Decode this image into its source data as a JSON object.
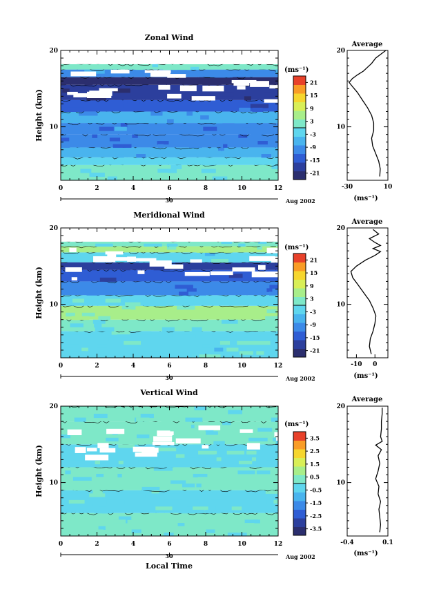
{
  "chart_data": [
    {
      "type": "heatmap",
      "title": "Zonal Wind",
      "ylabel": "Height (km)",
      "ylim": [
        3,
        20
      ],
      "yticks": [
        "10",
        "20"
      ],
      "xlim": [
        0,
        12
      ],
      "xticks": [
        "0",
        "2",
        "4",
        "6",
        "8",
        "10",
        "12"
      ],
      "date_day": "30",
      "date_label": "Aug 2002",
      "unit_label": "(ms⁻¹)",
      "colorbar_ticks": [
        "21",
        "15",
        "9",
        "3",
        "-3",
        "-9",
        "-15",
        "-21"
      ],
      "colorbar_range": [
        -24,
        24
      ],
      "layers": [
        {
          "y0": 3.0,
          "y1": 5.0,
          "value": 0.5
        },
        {
          "y0": 5.0,
          "y1": 6.0,
          "value": -3.5
        },
        {
          "y0": 6.0,
          "y1": 7.3,
          "value": -7
        },
        {
          "y0": 7.3,
          "y1": 9.0,
          "value": -12
        },
        {
          "y0": 9.0,
          "y1": 10.5,
          "value": -10
        },
        {
          "y0": 10.5,
          "y1": 12.0,
          "value": -8
        },
        {
          "y0": 12.0,
          "y1": 13.5,
          "value": -14
        },
        {
          "y0": 13.5,
          "y1": 15.5,
          "value": -19
        },
        {
          "y0": 15.5,
          "y1": 16.5,
          "value": -22
        },
        {
          "y0": 16.5,
          "y1": 17.5,
          "value": -9
        },
        {
          "y0": 17.5,
          "y1": 18.2,
          "value": 1
        }
      ],
      "average": {
        "title": "Average",
        "xlim": [
          -30,
          10
        ],
        "xticks": [
          "-30",
          "10"
        ],
        "ylim": [
          3,
          20
        ],
        "yticks": [
          "10",
          "20"
        ],
        "xlabel": "(ms⁻¹)",
        "profile": [
          [
            3.5,
            2
          ],
          [
            4.5,
            2.5
          ],
          [
            5.5,
            1
          ],
          [
            6.5,
            -2
          ],
          [
            7.5,
            -5
          ],
          [
            8.5,
            -6
          ],
          [
            9.5,
            -4
          ],
          [
            10.5,
            -4
          ],
          [
            11.5,
            -6
          ],
          [
            12.5,
            -10
          ],
          [
            13.5,
            -15
          ],
          [
            14.5,
            -20
          ],
          [
            15.3,
            -25
          ],
          [
            15.8,
            -28
          ],
          [
            16.3,
            -25
          ],
          [
            16.8,
            -20
          ],
          [
            17.3,
            -14
          ],
          [
            17.8,
            -10
          ],
          [
            18.3,
            -6
          ],
          [
            19.0,
            -2
          ],
          [
            19.5,
            3
          ],
          [
            20,
            8
          ]
        ]
      }
    },
    {
      "type": "heatmap",
      "title": "Meridional Wind",
      "ylabel": "Height (km)",
      "ylim": [
        3,
        20
      ],
      "yticks": [
        "10",
        "20"
      ],
      "xlim": [
        0,
        12
      ],
      "xticks": [
        "0",
        "2",
        "4",
        "6",
        "8",
        "10",
        "12"
      ],
      "date_day": "30",
      "date_label": "Aug 2002",
      "unit_label": "(ms⁻¹)",
      "colorbar_ticks": [
        "21",
        "15",
        "9",
        "3",
        "-3",
        "-9",
        "-15",
        "-21"
      ],
      "colorbar_range": [
        -24,
        24
      ],
      "layers": [
        {
          "y0": 3.0,
          "y1": 6.5,
          "value": -1.5
        },
        {
          "y0": 6.5,
          "y1": 8.0,
          "value": 0
        },
        {
          "y0": 8.0,
          "y1": 9.8,
          "value": 4
        },
        {
          "y0": 9.8,
          "y1": 11.2,
          "value": -2
        },
        {
          "y0": 11.2,
          "y1": 13.0,
          "value": -10
        },
        {
          "y0": 13.0,
          "y1": 14.5,
          "value": -15
        },
        {
          "y0": 14.5,
          "y1": 15.5,
          "value": -18
        },
        {
          "y0": 15.5,
          "y1": 16.8,
          "value": -1.5
        },
        {
          "y0": 16.8,
          "y1": 17.6,
          "value": 5
        },
        {
          "y0": 17.6,
          "y1": 18.3,
          "value": 0
        }
      ],
      "average": {
        "title": "Average",
        "xlim": [
          -15,
          7
        ],
        "xticks": [
          "-10",
          "0"
        ],
        "ylim": [
          3,
          20
        ],
        "yticks": [
          "10",
          "20"
        ],
        "xlabel": "(ms⁻¹)",
        "profile": [
          [
            3.5,
            -2
          ],
          [
            4.5,
            -3
          ],
          [
            5.5,
            -2.5
          ],
          [
            6.5,
            -1
          ],
          [
            7.5,
            0
          ],
          [
            8.5,
            0.5
          ],
          [
            9.5,
            -1
          ],
          [
            10.5,
            -3
          ],
          [
            11.5,
            -6
          ],
          [
            12.5,
            -9
          ],
          [
            13.5,
            -12
          ],
          [
            14.3,
            -13
          ],
          [
            15,
            -10
          ],
          [
            15.8,
            -5
          ],
          [
            16.4,
            0
          ],
          [
            16.9,
            3
          ],
          [
            17.3,
            -1
          ],
          [
            17.7,
            3
          ],
          [
            18.1,
            0
          ],
          [
            18.6,
            -3
          ],
          [
            19.2,
            2
          ],
          [
            19.8,
            -1
          ]
        ]
      }
    },
    {
      "type": "heatmap",
      "title": "Vertical Wind",
      "ylabel": "Height (km)",
      "xlabel": "Local Time",
      "ylim": [
        3,
        20
      ],
      "yticks": [
        "10",
        "20"
      ],
      "xlim": [
        0,
        12
      ],
      "xticks": [
        "0",
        "2",
        "4",
        "6",
        "8",
        "10",
        "12"
      ],
      "date_day": "30",
      "date_label": "Aug 2002",
      "unit_label": "(ms⁻¹)",
      "colorbar_ticks": [
        "3.5",
        "2.5",
        "1.5",
        "0.5",
        "-0.5",
        "-1.5",
        "-2.5",
        "-3.5"
      ],
      "colorbar_range": [
        -4,
        4
      ],
      "layers": [
        {
          "y0": 3.0,
          "y1": 6.0,
          "value": 0.1
        },
        {
          "y0": 6.0,
          "y1": 9.0,
          "value": -0.1
        },
        {
          "y0": 9.0,
          "y1": 12.0,
          "value": 0.1
        },
        {
          "y0": 12.0,
          "y1": 15.0,
          "value": -0.1
        },
        {
          "y0": 15.0,
          "y1": 18.0,
          "value": 0.1
        },
        {
          "y0": 18.0,
          "y1": 20.0,
          "value": 0.2
        }
      ],
      "average": {
        "title": "Average",
        "xlim": [
          -0.4,
          0.1
        ],
        "xticks": [
          "-0.4",
          "0.1"
        ],
        "ylim": [
          3,
          20
        ],
        "yticks": [
          "10",
          "20"
        ],
        "xlabel": "(ms⁻¹)",
        "profile": [
          [
            3.5,
            0
          ],
          [
            4.5,
            0.01
          ],
          [
            5.5,
            0.0
          ],
          [
            6.5,
            -0.01
          ],
          [
            7.5,
            0.01
          ],
          [
            8.5,
            -0.02
          ],
          [
            9.5,
            -0.01
          ],
          [
            10.5,
            -0.05
          ],
          [
            11.5,
            -0.02
          ],
          [
            12.5,
            0.0
          ],
          [
            13.5,
            -0.02
          ],
          [
            14.3,
            0.02
          ],
          [
            14.9,
            -0.05
          ],
          [
            15.4,
            0.03
          ],
          [
            16.0,
            0.01
          ],
          [
            17.0,
            0.02
          ],
          [
            18.0,
            0.02
          ],
          [
            19.0,
            0.03
          ],
          [
            19.8,
            0.03
          ]
        ]
      }
    }
  ]
}
